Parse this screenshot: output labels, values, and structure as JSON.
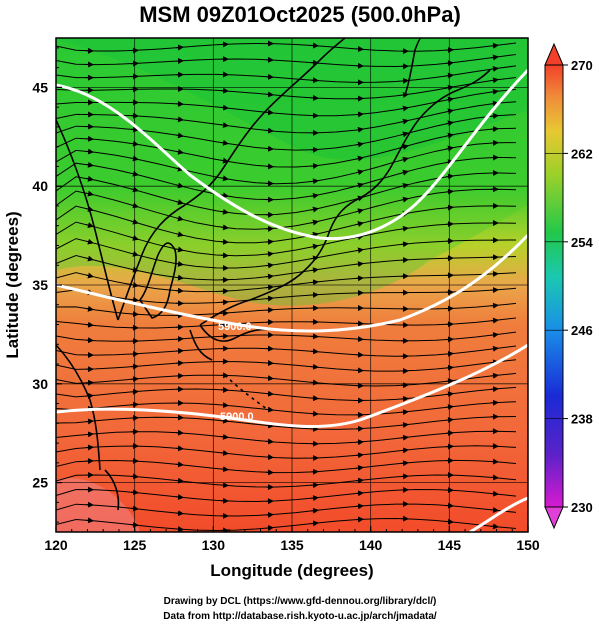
{
  "title": "MSM 09Z01Oct2025 (500.0hPa)",
  "x_axis": {
    "label": "Longitude (degrees)",
    "range": [
      120,
      150
    ],
    "ticks": [
      "120",
      "125",
      "130",
      "135",
      "140",
      "145",
      "150"
    ]
  },
  "y_axis": {
    "label": "Latitude  (degrees)",
    "range": [
      22.5,
      47.5
    ],
    "ticks": [
      "25",
      "30",
      "35",
      "40",
      "45"
    ]
  },
  "colorbar": {
    "range": [
      230,
      270
    ],
    "ticks": [
      "230",
      "238",
      "246",
      "254",
      "262",
      "270"
    ]
  },
  "contour_labels": [
    "5900.0",
    "5900.0"
  ],
  "credits": {
    "line1": "Drawing by DCL (https://www.gfd-dennou.org/library/dcl/)",
    "line2": "Data from http://database.rish.kyoto-u.ac.jp/arch/jmadata/"
  },
  "colors": {
    "cold_top": "#22c33a",
    "mid": "#8fd12a",
    "warm_edge": "#e8b24a",
    "warm": "#f07a3a",
    "hot": "#f25a2a",
    "contour": "#ffffff"
  }
}
